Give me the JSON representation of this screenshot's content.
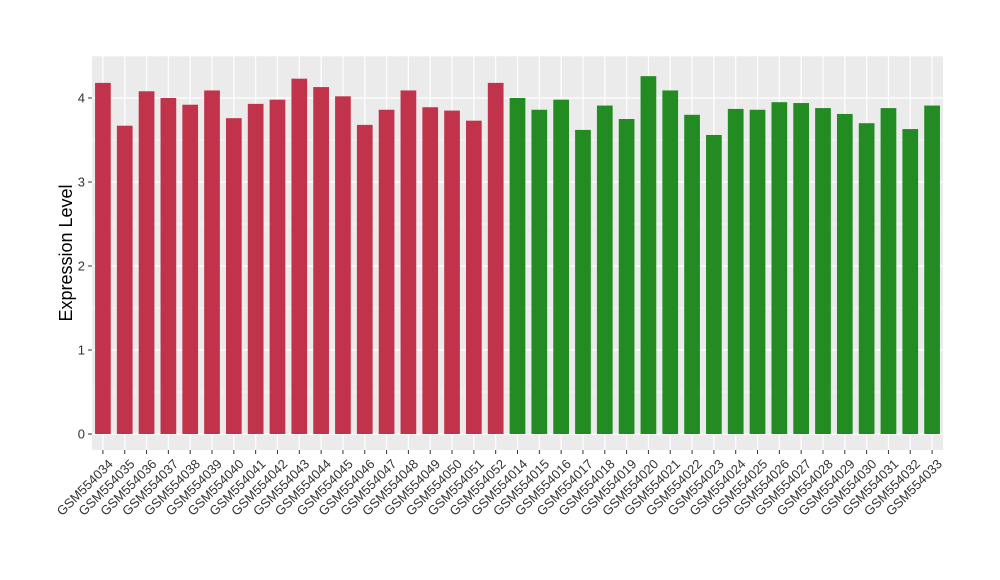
{
  "chart_data": {
    "type": "bar",
    "title": "",
    "xlabel": "",
    "ylabel": "Expression Level",
    "ylim": [
      0,
      4.5
    ],
    "yticks": [
      0,
      1,
      2,
      3,
      4
    ],
    "grid": true,
    "legend": "none",
    "panel_background": "#ebebeb",
    "grid_color": "#ffffff",
    "categories": [
      "GSM554034",
      "GSM554035",
      "GSM554036",
      "GSM554037",
      "GSM554038",
      "GSM554039",
      "GSM554040",
      "GSM554041",
      "GSM554042",
      "GSM554043",
      "GSM554044",
      "GSM554045",
      "GSM554046",
      "GSM554047",
      "GSM554048",
      "GSM554049",
      "GSM554050",
      "GSM554051",
      "GSM554052",
      "GSM554014",
      "GSM554015",
      "GSM554016",
      "GSM554017",
      "GSM554018",
      "GSM554019",
      "GSM554020",
      "GSM554021",
      "GSM554022",
      "GSM554023",
      "GSM554024",
      "GSM554025",
      "GSM554026",
      "GSM554027",
      "GSM554028",
      "GSM554029",
      "GSM554030",
      "GSM554031",
      "GSM554032",
      "GSM554033"
    ],
    "values": [
      4.18,
      3.67,
      4.08,
      4.0,
      3.92,
      4.09,
      3.76,
      3.93,
      3.98,
      4.23,
      4.13,
      4.02,
      3.68,
      3.86,
      4.09,
      3.89,
      3.85,
      3.73,
      4.18,
      4.0,
      3.86,
      3.98,
      3.62,
      3.91,
      3.75,
      4.26,
      4.09,
      3.8,
      3.56,
      3.87,
      3.86,
      3.95,
      3.94,
      3.88,
      3.81,
      3.7,
      3.88,
      3.63,
      3.91
    ],
    "bar_colors": [
      "#c0334a",
      "#c0334a",
      "#c0334a",
      "#c0334a",
      "#c0334a",
      "#c0334a",
      "#c0334a",
      "#c0334a",
      "#c0334a",
      "#c0334a",
      "#c0334a",
      "#c0334a",
      "#c0334a",
      "#c0334a",
      "#c0334a",
      "#c0334a",
      "#c0334a",
      "#c0334a",
      "#c0334a",
      "#228b22",
      "#228b22",
      "#228b22",
      "#228b22",
      "#228b22",
      "#228b22",
      "#228b22",
      "#228b22",
      "#228b22",
      "#228b22",
      "#228b22",
      "#228b22",
      "#228b22",
      "#228b22",
      "#228b22",
      "#228b22",
      "#228b22",
      "#228b22",
      "#228b22",
      "#228b22"
    ]
  }
}
